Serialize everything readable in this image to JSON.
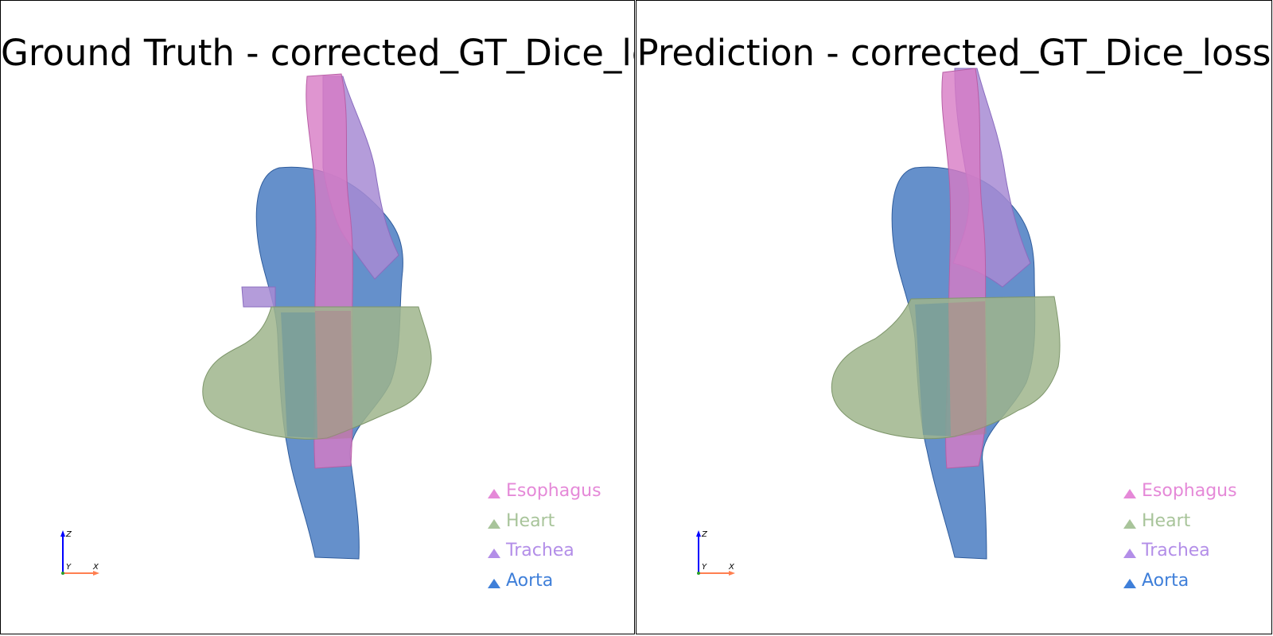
{
  "viewports": [
    {
      "id": "left",
      "title": "Ground Truth - corrected_GT_Dice_loss",
      "axes": {
        "z": "Z",
        "y": "Y",
        "x": "X"
      }
    },
    {
      "id": "right",
      "title": "Prediction - corrected_GT_Dice_loss",
      "axes": {
        "z": "Z",
        "y": "Y",
        "x": "X"
      }
    }
  ],
  "legend": [
    {
      "label": "Esophagus",
      "color": "#e589d8"
    },
    {
      "label": "Heart",
      "color": "#a8c49a"
    },
    {
      "label": "Trachea",
      "color": "#b38ee8"
    },
    {
      "label": "Aorta",
      "color": "#3f7fd9"
    }
  ],
  "colors": {
    "aorta": "#4a7cc2",
    "heart": "#9fb58c",
    "esophagus": "#d77ac4",
    "trachea": "#a78bd4",
    "axis_z": "#0000ff",
    "axis_x": "#ff7f50"
  }
}
